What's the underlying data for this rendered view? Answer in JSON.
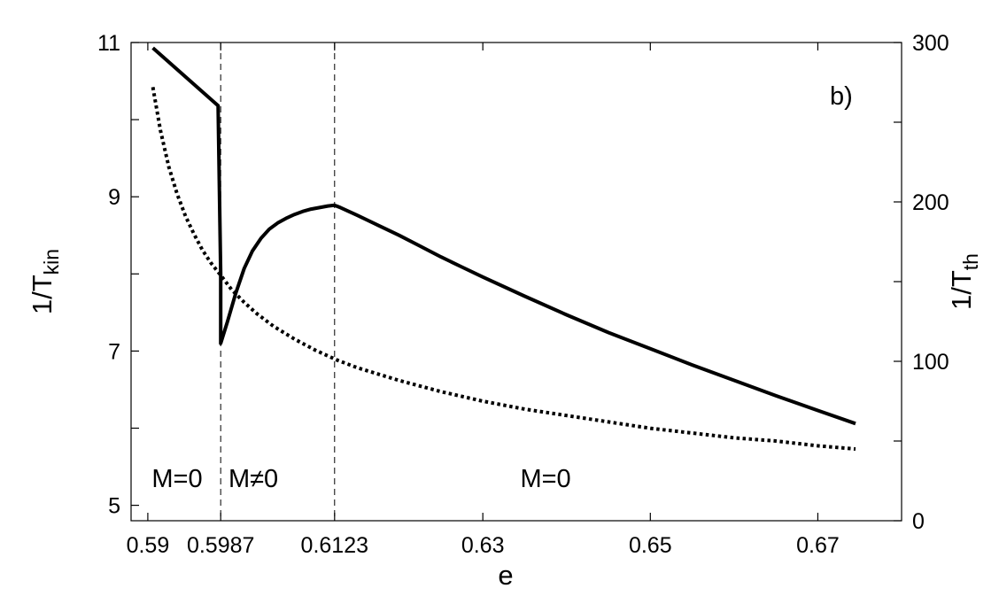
{
  "chart_data": {
    "type": "line",
    "panel_label": "b)",
    "xlabel": "e",
    "ylabel_left": {
      "main": "1/T",
      "sub": "kin"
    },
    "ylabel_right": {
      "main": "1/T",
      "sub": "th"
    },
    "xlim": [
      0.588,
      0.68
    ],
    "ylim_left": [
      4.8,
      11.0
    ],
    "ylim_right": [
      0,
      300
    ],
    "x_ticks": [
      0.59,
      0.5987,
      0.6123,
      0.63,
      0.65,
      0.67
    ],
    "x_tick_labels": [
      "0.59",
      "0.5987",
      "0.6123",
      "0.63",
      "0.65",
      "0.67"
    ],
    "y_left_ticks": [
      5,
      7,
      9,
      11
    ],
    "y_left_tick_labels": [
      "5",
      "7",
      "9",
      "11"
    ],
    "y_left_minor_ticks": [
      6,
      8,
      10
    ],
    "y_right_ticks": [
      0,
      100,
      200,
      300
    ],
    "y_right_tick_labels": [
      "0",
      "100",
      "200",
      "300"
    ],
    "y_right_minor_ticks": [
      50,
      150,
      250
    ],
    "vlines": [
      0.5987,
      0.6123
    ],
    "region_labels": [
      {
        "text": "M=0",
        "x": 0.5935,
        "y": 5.35
      },
      {
        "text": "M≠0",
        "x": 0.6026,
        "y": 5.35
      },
      {
        "text": "M=0",
        "x": 0.6375,
        "y": 5.35
      }
    ],
    "grid": false,
    "series": [
      {
        "axis": "left",
        "style": "solid",
        "color": "#000000",
        "x": [
          0.5906,
          0.5984,
          0.5984,
          0.5987,
          0.5987,
          0.5995,
          0.6005,
          0.6015,
          0.6025,
          0.6035,
          0.6045,
          0.6055,
          0.6065,
          0.6075,
          0.6085,
          0.6095,
          0.6105,
          0.6115,
          0.6123,
          0.613,
          0.615,
          0.6175,
          0.62,
          0.6225,
          0.625,
          0.6275,
          0.63,
          0.635,
          0.64,
          0.645,
          0.65,
          0.655,
          0.66,
          0.665,
          0.67,
          0.6745
        ],
        "y": [
          10.93,
          10.18,
          10.15,
          8.0,
          7.1,
          7.38,
          7.75,
          8.07,
          8.3,
          8.46,
          8.58,
          8.66,
          8.72,
          8.77,
          8.81,
          8.84,
          8.86,
          8.88,
          8.89,
          8.86,
          8.76,
          8.63,
          8.5,
          8.36,
          8.22,
          8.09,
          7.96,
          7.71,
          7.47,
          7.24,
          7.03,
          6.82,
          6.62,
          6.42,
          6.23,
          6.06
        ]
      },
      {
        "axis": "right",
        "style": "dotted",
        "color": "#000000",
        "x": [
          0.5906,
          0.5915,
          0.5925,
          0.5935,
          0.5945,
          0.5955,
          0.5965,
          0.5975,
          0.5987,
          0.6,
          0.6015,
          0.603,
          0.605,
          0.6075,
          0.61,
          0.6125,
          0.615,
          0.6175,
          0.62,
          0.625,
          0.63,
          0.635,
          0.64,
          0.645,
          0.65,
          0.655,
          0.66,
          0.665,
          0.67,
          0.6745
        ],
        "y": [
          272,
          245,
          222,
          205,
          191,
          180,
          170,
          162,
          154,
          145,
          137,
          130,
          122,
          114,
          107,
          101,
          96,
          92,
          88,
          81,
          75,
          70,
          66,
          62,
          58,
          55,
          52,
          50,
          47,
          45
        ]
      }
    ]
  }
}
